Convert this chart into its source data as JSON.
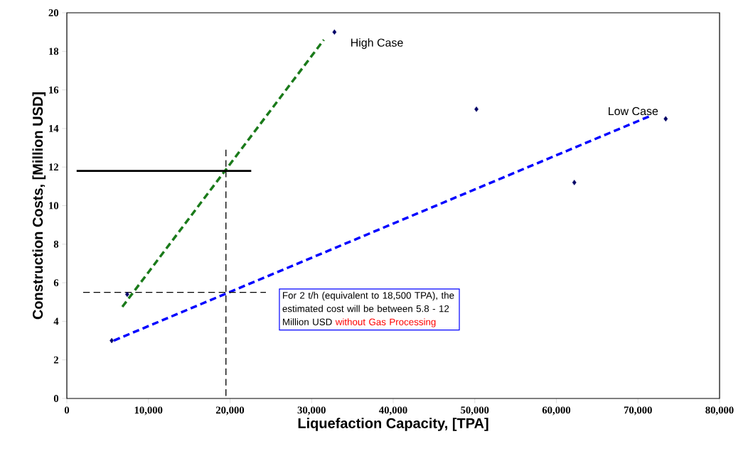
{
  "chart_data": {
    "type": "line",
    "xlabel": "Liquefaction Capacity, [TPA]",
    "ylabel": "Construction Costs, [Million USD]",
    "xlim": [
      0,
      80000
    ],
    "ylim": [
      0,
      20
    ],
    "xticks": [
      {
        "value": 0,
        "label": "0"
      },
      {
        "value": 10000,
        "label": "10,000"
      },
      {
        "value": 20000,
        "label": "20,000"
      },
      {
        "value": 30000,
        "label": "30,000"
      },
      {
        "value": 40000,
        "label": "40,000"
      },
      {
        "value": 50000,
        "label": "50,000"
      },
      {
        "value": 60000,
        "label": "60,000"
      },
      {
        "value": 70000,
        "label": "70,000"
      },
      {
        "value": 80000,
        "label": "80,000"
      }
    ],
    "yticks": [
      0,
      2,
      4,
      6,
      8,
      10,
      12,
      14,
      16,
      18,
      20
    ],
    "grid": false,
    "series": [
      {
        "type": "scatter",
        "marker": "diamond",
        "color": "#000066",
        "x": [
          5500,
          7400,
          32800,
          50200,
          62200,
          73400
        ],
        "values": [
          3.0,
          5.4,
          19.0,
          15.0,
          11.2,
          14.5
        ]
      },
      {
        "color": "#1a7a1a",
        "line_style": "dashed",
        "x": [
          6800,
          31500
        ],
        "values": [
          4.75,
          18.6
        ]
      },
      {
        "color": "#0000ff",
        "line_style": "dashed",
        "x": [
          5750,
          71500
        ],
        "values": [
          3.0,
          14.65
        ]
      },
      {
        "color": "#000000",
        "line_style": "solid",
        "x": [
          1200,
          22600
        ],
        "values": [
          11.8,
          11.8
        ]
      },
      {
        "color": "#000000",
        "line_style": "dashed",
        "x": [
          19500,
          19500
        ],
        "values": [
          12.9,
          0
        ]
      },
      {
        "color": "#000000",
        "line_style": "dashed",
        "x": [
          2000,
          24400
        ],
        "values": [
          5.5,
          5.5
        ]
      }
    ],
    "annotations": [
      "High Case",
      "Low Case",
      "For 2 t/h (equivalent to 18,500 TPA), the estimated cost will be between 5.8 - 12 Million USD",
      "without Gas Processing"
    ]
  }
}
